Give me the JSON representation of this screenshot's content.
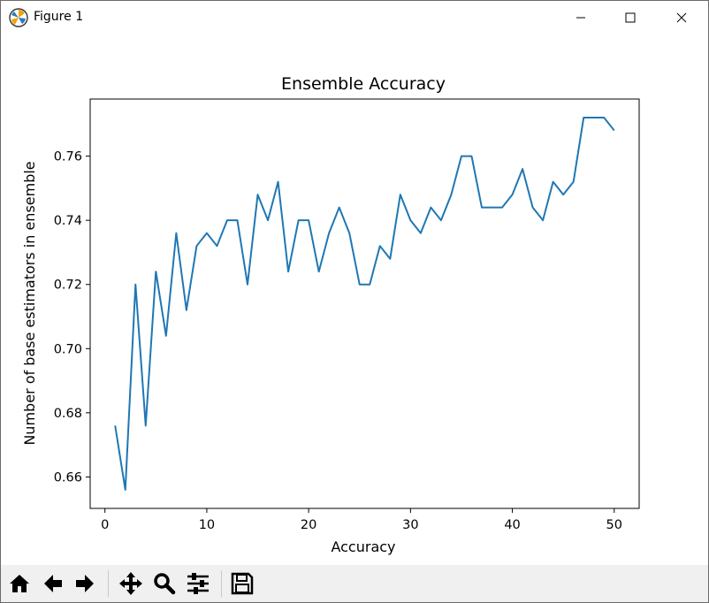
{
  "window": {
    "title": "Figure 1",
    "controls": [
      "minimize",
      "maximize",
      "close"
    ]
  },
  "toolbar": {
    "buttons": [
      {
        "name": "home",
        "icon": "home-icon"
      },
      {
        "name": "back",
        "icon": "arrow-left-icon"
      },
      {
        "name": "forward",
        "icon": "arrow-right-icon"
      },
      {
        "name": "pan",
        "icon": "move-icon"
      },
      {
        "name": "zoom",
        "icon": "magnifier-icon"
      },
      {
        "name": "configure-subplots",
        "icon": "sliders-icon"
      },
      {
        "name": "save",
        "icon": "floppy-disk-icon"
      }
    ]
  },
  "chart_data": {
    "type": "line",
    "title": "Ensemble Accuracy",
    "xlabel": "Accuracy",
    "ylabel": "Number of base estimators in ensemble",
    "xlim": [
      -1.45,
      52.45
    ],
    "ylim": [
      0.6502,
      0.7778
    ],
    "xticks": [
      0,
      10,
      20,
      30,
      40,
      50
    ],
    "yticks": [
      0.66,
      0.68,
      0.7,
      0.72,
      0.74,
      0.76
    ],
    "grid": false,
    "line_color": "#1f77b4",
    "series": [
      {
        "x": [
          1,
          2,
          3,
          4,
          5,
          6,
          7,
          8,
          9,
          10,
          11,
          12,
          13,
          14,
          15,
          16,
          17,
          18,
          19,
          20,
          21,
          22,
          23,
          24,
          25,
          26,
          27,
          28,
          29,
          30,
          31,
          32,
          33,
          34,
          35,
          36,
          37,
          38,
          39,
          40,
          41,
          42,
          43,
          44,
          45,
          46,
          47,
          48,
          49,
          50
        ],
        "y": [
          0.676,
          0.656,
          0.72,
          0.676,
          0.724,
          0.704,
          0.736,
          0.712,
          0.732,
          0.736,
          0.732,
          0.74,
          0.74,
          0.72,
          0.748,
          0.74,
          0.752,
          0.724,
          0.74,
          0.74,
          0.724,
          0.736,
          0.744,
          0.736,
          0.72,
          0.72,
          0.732,
          0.728,
          0.748,
          0.74,
          0.736,
          0.744,
          0.74,
          0.748,
          0.76,
          0.76,
          0.744,
          0.744,
          0.744,
          0.748,
          0.756,
          0.744,
          0.74,
          0.752,
          0.748,
          0.752,
          0.772,
          0.772,
          0.772,
          0.768
        ]
      }
    ]
  }
}
